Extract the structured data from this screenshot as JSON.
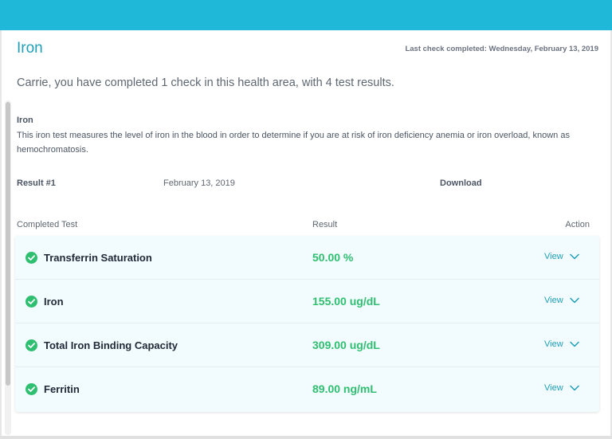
{
  "header": {
    "title": "Iron",
    "last_check": "Last check completed: Wednesday, February 13, 2019"
  },
  "summary": "Carrie, you have completed 1 check in this health area, with 4 test results.",
  "section": {
    "title": "Iron",
    "description": "This iron test measures the level of iron in the blood in order to determine if you are at risk of iron deficiency anemia or iron overload, known as hemochromatosis."
  },
  "result_info": {
    "label": "Result #1",
    "date": "February 13, 2019",
    "download_label": "Download"
  },
  "table": {
    "headers": {
      "completed": "Completed Test",
      "result": "Result",
      "action": "Action"
    },
    "rows": [
      {
        "name": "Transferrin Saturation",
        "result": "50.00 %",
        "action": "View"
      },
      {
        "name": "Iron",
        "result": "155.00 ug/dL",
        "action": "View"
      },
      {
        "name": "Total Iron Binding Capacity",
        "result": "309.00 ug/dL",
        "action": "View"
      },
      {
        "name": "Ferritin",
        "result": "89.00 ng/mL",
        "action": "View"
      }
    ]
  },
  "colors": {
    "accent": "#1fb8d8",
    "title": "#1f9fb8",
    "success": "#2fbf71"
  }
}
